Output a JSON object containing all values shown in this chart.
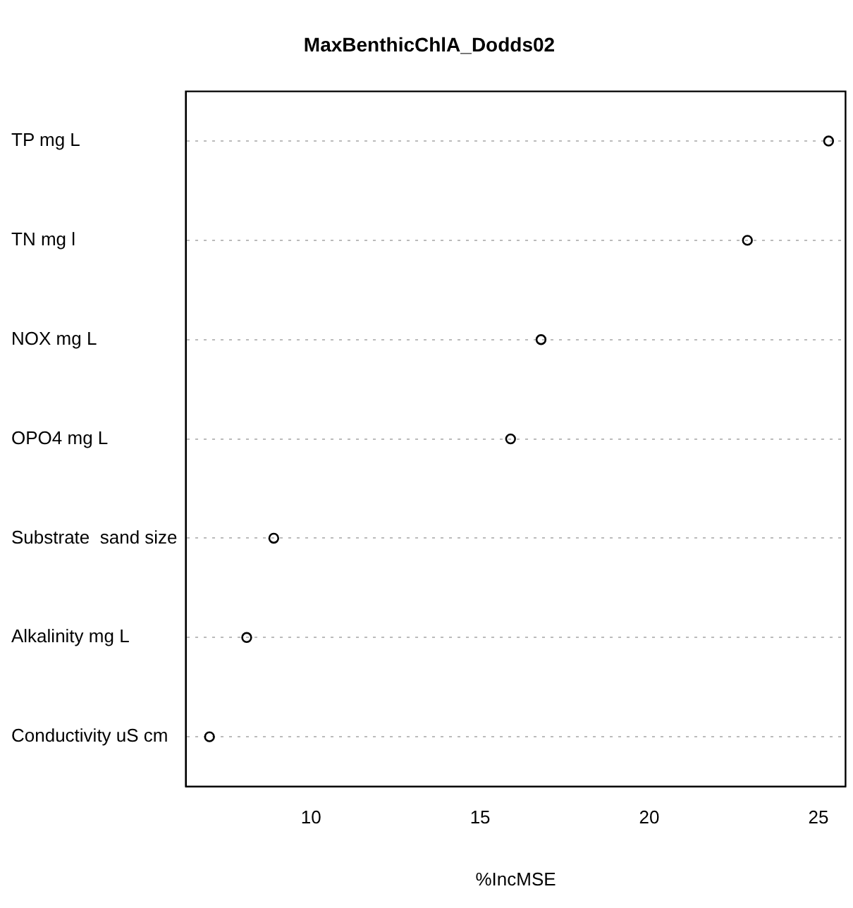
{
  "chart_data": {
    "type": "scatter",
    "title": "MaxBenthicChlA_Dodds02",
    "xlabel": "%IncMSE",
    "categories": [
      "TP mg L",
      "TN mg l",
      "NOX mg L",
      "OPO4 mg L",
      "Substrate  sand size",
      "Alkalinity mg L",
      "Conductivity uS cm"
    ],
    "series": [
      {
        "color": "#000000",
        "values": [
          25.3,
          22.9,
          16.8,
          15.9,
          8.9,
          8.1,
          7.0
        ]
      }
    ],
    "xlim": [
      6.3,
      25.8
    ],
    "xticks": [
      10,
      15,
      20,
      25
    ],
    "grid": "y",
    "legend": false,
    "marker": "circle",
    "orientation": "horizontal"
  }
}
